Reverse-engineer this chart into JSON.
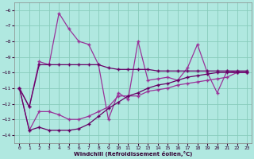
{
  "xlabel": "Windchill (Refroidissement éolien,°C)",
  "bg_color": "#b0e8e0",
  "grid_color": "#88ccbb",
  "line_color1": "#993399",
  "line_color2": "#660066",
  "x": [
    0,
    1,
    2,
    3,
    4,
    5,
    6,
    7,
    8,
    9,
    10,
    11,
    12,
    13,
    14,
    15,
    16,
    17,
    18,
    19,
    20,
    21,
    22,
    23
  ],
  "series1": [
    -11.0,
    -12.2,
    -9.3,
    -9.5,
    -6.2,
    -7.2,
    -8.0,
    -8.2,
    -9.5,
    -13.0,
    -11.3,
    -11.7,
    -8.0,
    -10.5,
    -10.4,
    -10.3,
    -10.5,
    -9.7,
    -8.2,
    -10.0,
    -11.3,
    -9.9,
    -10.0,
    -10.0
  ],
  "series2": [
    -11.0,
    -12.2,
    -9.5,
    -9.5,
    -9.5,
    -9.5,
    -9.5,
    -9.5,
    -9.5,
    -9.7,
    -9.8,
    -9.8,
    -9.8,
    -9.8,
    -9.9,
    -9.9,
    -9.9,
    -9.9,
    -9.9,
    -9.9,
    -9.9,
    -9.9,
    -9.9,
    -9.9
  ],
  "series3": [
    -11.0,
    -13.7,
    -12.5,
    -12.5,
    -12.7,
    -13.0,
    -13.0,
    -12.8,
    -12.5,
    -12.2,
    -11.5,
    -11.5,
    -11.5,
    -11.2,
    -11.1,
    -11.0,
    -10.8,
    -10.7,
    -10.6,
    -10.5,
    -10.4,
    -10.3,
    -10.0,
    -10.0
  ],
  "series4": [
    -11.0,
    -13.7,
    -13.5,
    -13.7,
    -13.7,
    -13.7,
    -13.6,
    -13.3,
    -12.8,
    -12.3,
    -11.9,
    -11.5,
    -11.3,
    -11.0,
    -10.8,
    -10.7,
    -10.5,
    -10.3,
    -10.2,
    -10.1,
    -10.0,
    -10.0,
    -10.0,
    -10.0
  ],
  "ylim": [
    -14.5,
    -5.5
  ],
  "yticks": [
    -14,
    -13,
    -12,
    -11,
    -10,
    -9,
    -8,
    -7,
    -6
  ],
  "xlim": [
    -0.5,
    23.5
  ],
  "xticks": [
    0,
    1,
    2,
    3,
    4,
    5,
    6,
    7,
    8,
    9,
    10,
    11,
    12,
    13,
    14,
    15,
    16,
    17,
    18,
    19,
    20,
    21,
    22,
    23
  ]
}
